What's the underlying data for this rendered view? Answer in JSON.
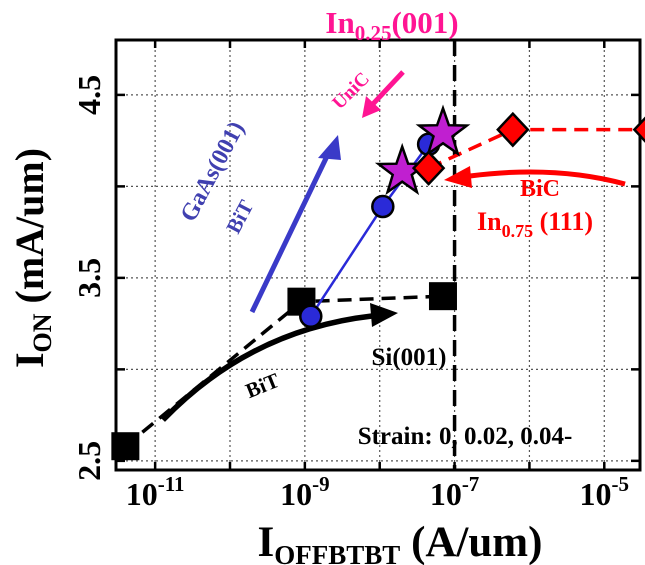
{
  "chart_data": {
    "type": "scatter",
    "xlabel": {
      "main": "I",
      "sub": "OFFBTBT",
      "rest": " (A/um)"
    },
    "ylabel": {
      "main": "I",
      "sub": "ON",
      "rest": " (mA/um)"
    },
    "x_scale": "log",
    "xlim": [
      3e-12,
      3e-05
    ],
    "ylim": [
      2.45,
      4.8
    ],
    "x_ticks": [
      {
        "value": 1e-11,
        "base": "10",
        "exp": "-11"
      },
      {
        "value": 1e-09,
        "base": "10",
        "exp": "-9"
      },
      {
        "value": 1e-07,
        "base": "10",
        "exp": "-7"
      },
      {
        "value": 1e-05,
        "base": "10",
        "exp": "-5"
      }
    ],
    "y_ticks": [
      {
        "value": 2.5,
        "label": "2.5"
      },
      {
        "value": 3.5,
        "label": "3.5"
      },
      {
        "value": 4.5,
        "label": "4.5"
      }
    ],
    "grid": true,
    "vline_x": 1e-07,
    "series": [
      {
        "marker": "square",
        "color": "#000000",
        "line": "dashed",
        "points": [
          {
            "x": 4e-12,
            "y": 2.58
          },
          {
            "x": 9e-10,
            "y": 3.37
          },
          {
            "x": 7e-08,
            "y": 3.4
          }
        ]
      },
      {
        "marker": "circle",
        "color": "#2a2ad8",
        "line": "solid",
        "points": [
          {
            "x": 1.2e-09,
            "y": 3.29
          },
          {
            "x": 1.1e-08,
            "y": 3.89
          },
          {
            "x": 4.5e-08,
            "y": 4.23
          }
        ]
      },
      {
        "marker": "star",
        "color": "#c01fd0",
        "line": "none",
        "points": [
          {
            "x": 2e-08,
            "y": 4.08
          },
          {
            "x": 7e-08,
            "y": 4.29
          }
        ]
      },
      {
        "marker": "diamond",
        "color": "#ff0000",
        "line": "dashed",
        "points": [
          {
            "x": 4.5e-08,
            "y": 4.1
          },
          {
            "x": 6e-07,
            "y": 4.31
          },
          {
            "x": 4e-05,
            "y": 4.31
          }
        ]
      }
    ],
    "annotations": {
      "in025": {
        "main": "In",
        "sub": "0.25",
        "rest": "(001)",
        "color": "#ff1493"
      },
      "unic": {
        "text": "UniC",
        "color": "#ff1493"
      },
      "gaas": {
        "text": "GaAs(001)",
        "color": "#4040b0"
      },
      "gaas_bit": {
        "text": "BiT",
        "color": "#4040b0"
      },
      "bic": {
        "text": "BiC",
        "color": "#ff0000"
      },
      "in075": {
        "main": "In",
        "sub": "0.75",
        "rest": " (111)",
        "color": "#ff0000"
      },
      "si": {
        "text": "Si(001)",
        "color": "#000000"
      },
      "si_bit": {
        "text": "BiT",
        "color": "#000000"
      },
      "strain": {
        "text": "Strain: 0, 0.02, 0.04-",
        "color": "#000000"
      }
    }
  }
}
